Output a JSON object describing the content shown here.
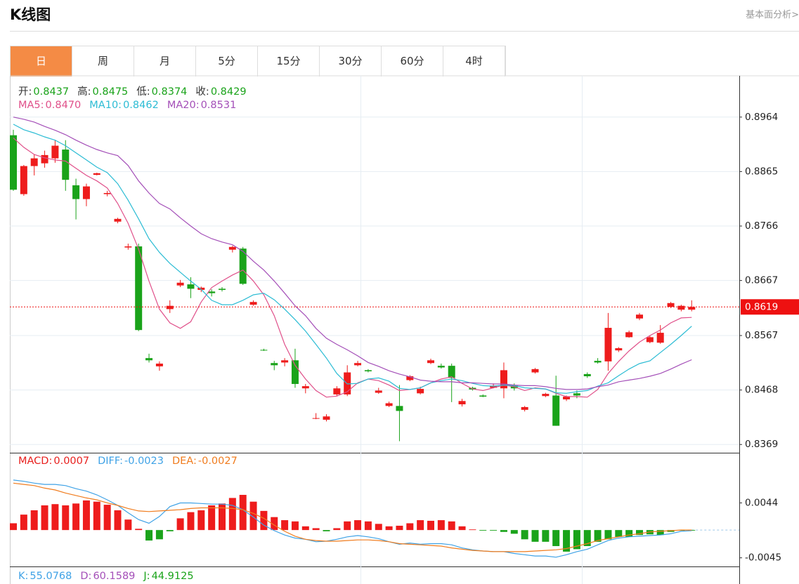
{
  "header": {
    "title": "K线图",
    "link": "基本面分析>"
  },
  "tabs": [
    "日",
    "周",
    "月",
    "5分",
    "15分",
    "30分",
    "60分",
    "4时"
  ],
  "active_tab": 0,
  "chart_data": [
    {
      "type": "candlestick",
      "info": [
        {
          "label": "开:",
          "value": "0.8437"
        },
        {
          "label": "高:",
          "value": "0.8475"
        },
        {
          "label": "低:",
          "value": "0.8374"
        },
        {
          "label": "收:",
          "value": "0.8429"
        }
      ],
      "up_color": "#ee1c1c",
      "down_color": "#1aa31a",
      "open": [
        0.8931,
        0.8824,
        0.8875,
        0.888,
        0.8889,
        0.8905,
        0.884,
        0.8815,
        0.8859,
        0.8824,
        0.8774,
        0.8727,
        0.8729,
        0.8526,
        0.8511,
        0.8615,
        0.8658,
        0.866,
        0.865,
        0.8647,
        0.8652,
        0.8723,
        0.8725,
        0.8623,
        0.8541,
        0.8517,
        0.8518,
        0.8522,
        0.8471,
        0.8416,
        0.8414,
        0.846,
        0.846,
        0.8513,
        0.8504,
        0.8463,
        0.8439,
        0.8439,
        0.8486,
        0.8462,
        0.8517,
        0.8512,
        0.8512,
        0.8442,
        0.8472,
        0.8458,
        0.8472,
        0.8471,
        0.8476,
        0.8432,
        0.85,
        0.8457,
        0.8458,
        0.8451,
        0.8462,
        0.8497,
        0.8521,
        0.852,
        0.854,
        0.8564,
        0.8598,
        0.8555,
        0.8554,
        0.8619,
        0.8614,
        0.8614
      ],
      "high": [
        0.8941,
        0.8877,
        0.8896,
        0.8903,
        0.8922,
        0.8922,
        0.8852,
        0.8843,
        0.8863,
        0.883,
        0.8781,
        0.8734,
        0.8734,
        0.8534,
        0.852,
        0.8631,
        0.8668,
        0.8673,
        0.8656,
        0.8651,
        0.8655,
        0.873,
        0.8728,
        0.8631,
        0.8543,
        0.8521,
        0.8526,
        0.8543,
        0.8479,
        0.8426,
        0.8424,
        0.8475,
        0.8513,
        0.8521,
        0.8506,
        0.8472,
        0.8447,
        0.8477,
        0.8495,
        0.8474,
        0.8525,
        0.8516,
        0.8516,
        0.8452,
        0.8474,
        0.846,
        0.848,
        0.8518,
        0.848,
        0.8439,
        0.8508,
        0.8463,
        0.8494,
        0.8458,
        0.8467,
        0.85,
        0.8526,
        0.8608,
        0.8546,
        0.8576,
        0.8608,
        0.8567,
        0.8586,
        0.8628,
        0.8623,
        0.8631
      ],
      "low": [
        0.883,
        0.8821,
        0.8858,
        0.8872,
        0.8881,
        0.883,
        0.8778,
        0.8802,
        0.8858,
        0.882,
        0.8771,
        0.8723,
        0.8575,
        0.8518,
        0.8503,
        0.8608,
        0.8655,
        0.8635,
        0.8646,
        0.8638,
        0.8647,
        0.8718,
        0.8659,
        0.8621,
        0.8539,
        0.8504,
        0.8511,
        0.8472,
        0.8462,
        0.8415,
        0.8411,
        0.8457,
        0.8457,
        0.8511,
        0.85,
        0.8461,
        0.8437,
        0.8375,
        0.8484,
        0.846,
        0.8515,
        0.8507,
        0.8446,
        0.8438,
        0.8467,
        0.8455,
        0.8471,
        0.8453,
        0.8467,
        0.8429,
        0.8498,
        0.8455,
        0.8403,
        0.8448,
        0.8453,
        0.849,
        0.8516,
        0.8503,
        0.8537,
        0.8563,
        0.8595,
        0.8553,
        0.8552,
        0.8617,
        0.8611,
        0.8611
      ],
      "close": [
        0.8832,
        0.8875,
        0.8889,
        0.8895,
        0.8912,
        0.885,
        0.8815,
        0.8838,
        0.8862,
        0.8826,
        0.8779,
        0.8729,
        0.8577,
        0.8522,
        0.8516,
        0.8621,
        0.8663,
        0.8652,
        0.8654,
        0.8644,
        0.865,
        0.8728,
        0.8661,
        0.8628,
        0.854,
        0.8513,
        0.8522,
        0.8479,
        0.8475,
        0.8417,
        0.842,
        0.8471,
        0.85,
        0.8517,
        0.8502,
        0.8467,
        0.8444,
        0.843,
        0.8493,
        0.847,
        0.8522,
        0.8509,
        0.849,
        0.8448,
        0.8469,
        0.8456,
        0.8476,
        0.8504,
        0.8471,
        0.8437,
        0.8506,
        0.8461,
        0.8403,
        0.8456,
        0.8458,
        0.8493,
        0.8518,
        0.8581,
        0.8544,
        0.8573,
        0.8605,
        0.8564,
        0.8572,
        0.8626,
        0.8621,
        0.8619
      ],
      "series": [
        {
          "name": "MA5:",
          "legend_value": "0.8470",
          "color": "#e0508a",
          "values": [
            0.8926,
            0.8909,
            0.8896,
            0.889,
            0.8886,
            0.8884,
            0.8871,
            0.8858,
            0.8848,
            0.8835,
            0.8807,
            0.8771,
            0.8724,
            0.8666,
            0.8615,
            0.859,
            0.858,
            0.8592,
            0.8628,
            0.8654,
            0.8666,
            0.8677,
            0.8686,
            0.8666,
            0.8641,
            0.8603,
            0.8551,
            0.8513,
            0.8488,
            0.8467,
            0.8455,
            0.8457,
            0.8465,
            0.8481,
            0.8488,
            0.8485,
            0.8477,
            0.8467,
            0.8469,
            0.8472,
            0.8481,
            0.8488,
            0.8492,
            0.848,
            0.847,
            0.8467,
            0.8472,
            0.8477,
            0.8474,
            0.8467,
            0.8472,
            0.847,
            0.8462,
            0.8456,
            0.8456,
            0.8455,
            0.8469,
            0.8498,
            0.852,
            0.8539,
            0.8555,
            0.8567,
            0.8577,
            0.859,
            0.8599,
            0.86
          ]
        },
        {
          "name": "MA10:",
          "legend_value": "0.8462",
          "color": "#2cbcd4",
          "values": [
            0.8951,
            0.8941,
            0.8935,
            0.8928,
            0.8922,
            0.8912,
            0.8899,
            0.8886,
            0.8873,
            0.8863,
            0.8843,
            0.8813,
            0.8779,
            0.8743,
            0.8718,
            0.8698,
            0.8682,
            0.8666,
            0.8651,
            0.8631,
            0.8623,
            0.8623,
            0.8631,
            0.8641,
            0.8644,
            0.8632,
            0.8615,
            0.8596,
            0.8575,
            0.8551,
            0.8526,
            0.8498,
            0.8479,
            0.848,
            0.8488,
            0.849,
            0.8484,
            0.8471,
            0.8469,
            0.8472,
            0.8481,
            0.8485,
            0.8488,
            0.8485,
            0.848,
            0.8476,
            0.8475,
            0.8477,
            0.8476,
            0.8472,
            0.8471,
            0.847,
            0.8463,
            0.8462,
            0.8465,
            0.8467,
            0.8475,
            0.8481,
            0.8494,
            0.8506,
            0.8516,
            0.8521,
            0.8536,
            0.8551,
            0.8567,
            0.8584
          ]
        },
        {
          "name": "MA20:",
          "legend_value": "0.8531",
          "color": "#a44fb8",
          "values": [
            0.8964,
            0.896,
            0.8955,
            0.8947,
            0.894,
            0.8932,
            0.8922,
            0.8913,
            0.8905,
            0.8899,
            0.8894,
            0.8876,
            0.8848,
            0.8826,
            0.8807,
            0.8797,
            0.8781,
            0.8766,
            0.8752,
            0.8743,
            0.8737,
            0.8732,
            0.872,
            0.8702,
            0.8686,
            0.8666,
            0.8644,
            0.8621,
            0.8603,
            0.858,
            0.8562,
            0.8551,
            0.8541,
            0.853,
            0.8518,
            0.8511,
            0.8503,
            0.8497,
            0.8492,
            0.8486,
            0.8484,
            0.8483,
            0.8483,
            0.8481,
            0.8481,
            0.848,
            0.8479,
            0.8479,
            0.8477,
            0.8476,
            0.8476,
            0.8474,
            0.8471,
            0.8469,
            0.8469,
            0.847,
            0.8474,
            0.8477,
            0.8483,
            0.8486,
            0.8489,
            0.8493,
            0.8498,
            0.8506,
            0.8515,
            0.8523
          ]
        }
      ],
      "ylim": [
        0.8354,
        0.9039
      ],
      "yticks": [
        0.8369,
        0.8468,
        0.8567,
        0.8667,
        0.8766,
        0.8865,
        0.8964
      ],
      "grid": true,
      "last_price": 0.8619,
      "last_price_color": "#ee1111"
    },
    {
      "type": "macd",
      "bars": {
        "name": "MACD:",
        "legend_value": "0.0007",
        "color": "#e8201e",
        "up_color": "#ee1c1c",
        "down_color": "#1aa31a",
        "values": [
          0.0011,
          0.0025,
          0.0032,
          0.004,
          0.0042,
          0.004,
          0.0043,
          0.0048,
          0.0046,
          0.0041,
          0.0032,
          0.0017,
          0.0002,
          -0.0017,
          -0.0015,
          -0.0002,
          0.0019,
          0.0029,
          0.0032,
          0.004,
          0.0043,
          0.0052,
          0.0057,
          0.0046,
          0.0031,
          0.0021,
          0.0016,
          0.0014,
          0.0006,
          0.0003,
          -0.0002,
          0.0003,
          0.0014,
          0.0016,
          0.0014,
          0.001,
          0.0006,
          0.0007,
          0.0011,
          0.0016,
          0.0015,
          0.0016,
          0.0014,
          0.0006,
          0.0001,
          -0.0001,
          -0.0001,
          -0.0003,
          -0.0006,
          -0.0015,
          -0.0019,
          -0.0019,
          -0.0026,
          -0.0035,
          -0.0031,
          -0.0026,
          -0.0019,
          -0.0015,
          -0.0011,
          -0.0011,
          -0.0008,
          -0.0007,
          -0.0008,
          -0.0003,
          -0.0001,
          -0.0001
        ]
      },
      "series": [
        {
          "name": "DIFF:",
          "legend_value": "-0.0023",
          "color": "#3fa2e6",
          "values": [
            0.0081,
            0.0079,
            0.0076,
            0.0074,
            0.0074,
            0.0072,
            0.0067,
            0.0063,
            0.0057,
            0.0049,
            0.004,
            0.0028,
            0.0017,
            0.0011,
            0.0022,
            0.0038,
            0.0044,
            0.0044,
            0.0043,
            0.0042,
            0.0042,
            0.004,
            0.0033,
            0.0021,
            0.0008,
            -0.0001,
            -0.0008,
            -0.0013,
            -0.0015,
            -0.0019,
            -0.0018,
            -0.0015,
            -0.0011,
            -0.0009,
            -0.0011,
            -0.0014,
            -0.0019,
            -0.0023,
            -0.0021,
            -0.0023,
            -0.0022,
            -0.0022,
            -0.0024,
            -0.0029,
            -0.0032,
            -0.0034,
            -0.0035,
            -0.0035,
            -0.0038,
            -0.004,
            -0.0042,
            -0.0042,
            -0.0044,
            -0.004,
            -0.0035,
            -0.0031,
            -0.0024,
            -0.0017,
            -0.0013,
            -0.0011,
            -0.001,
            -0.0009,
            -0.0008,
            -0.0006,
            -0.0002,
            -0.0001
          ]
        },
        {
          "name": "DEA:",
          "legend_value": "-0.0027",
          "color": "#f07c1e",
          "values": [
            0.0076,
            0.0074,
            0.0072,
            0.0068,
            0.0065,
            0.006,
            0.0056,
            0.0052,
            0.0049,
            0.0044,
            0.004,
            0.0035,
            0.0031,
            0.003,
            0.0031,
            0.0032,
            0.0033,
            0.0035,
            0.0036,
            0.0036,
            0.0036,
            0.0035,
            0.0033,
            0.0027,
            0.0019,
            0.0008,
            -0.0002,
            -0.001,
            -0.0015,
            -0.0017,
            -0.0018,
            -0.0018,
            -0.0017,
            -0.0016,
            -0.0016,
            -0.0017,
            -0.0019,
            -0.0022,
            -0.0023,
            -0.0024,
            -0.0025,
            -0.0026,
            -0.0029,
            -0.0031,
            -0.0033,
            -0.0034,
            -0.0035,
            -0.0035,
            -0.0035,
            -0.0035,
            -0.0034,
            -0.0033,
            -0.0032,
            -0.003,
            -0.0026,
            -0.0022,
            -0.0017,
            -0.0014,
            -0.0011,
            -0.0008,
            -0.0006,
            -0.0003,
            -0.0002,
            -0.0001,
            0,
            0
          ]
        }
      ],
      "ylim": [
        -0.0059,
        0.0123
      ],
      "yticks": [
        -0.0045,
        0.0044
      ]
    },
    {
      "type": "kdj",
      "info": [
        {
          "label": "K:",
          "value": "55.0768",
          "color": "#3fa2e6"
        },
        {
          "label": "D:",
          "value": "60.1589",
          "color": "#a44fb8"
        },
        {
          "label": "J:",
          "value": "44.9125",
          "color": "#1aa31a"
        }
      ]
    }
  ]
}
